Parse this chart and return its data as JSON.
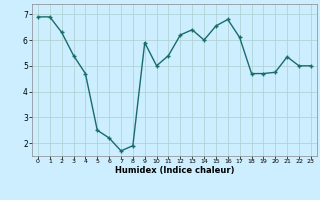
{
  "x": [
    0,
    1,
    2,
    3,
    4,
    5,
    6,
    7,
    8,
    9,
    10,
    11,
    12,
    13,
    14,
    15,
    16,
    17,
    18,
    19,
    20,
    21,
    22,
    23
  ],
  "y": [
    6.9,
    6.9,
    6.3,
    5.4,
    4.7,
    2.5,
    2.2,
    1.7,
    1.9,
    5.9,
    5.0,
    5.4,
    6.2,
    6.4,
    6.0,
    6.55,
    6.8,
    6.1,
    4.7,
    4.7,
    4.75,
    5.35,
    5.0,
    5.0
  ],
  "line_color": "#1a6b6b",
  "marker": "+",
  "marker_size": 3.5,
  "linewidth": 1.0,
  "xlabel": "Humidex (Indice chaleur)",
  "xlim": [
    -0.5,
    23.5
  ],
  "ylim": [
    1.5,
    7.4
  ],
  "yticks": [
    2,
    3,
    4,
    5,
    6,
    7
  ],
  "xticks": [
    0,
    1,
    2,
    3,
    4,
    5,
    6,
    7,
    8,
    9,
    10,
    11,
    12,
    13,
    14,
    15,
    16,
    17,
    18,
    19,
    20,
    21,
    22,
    23
  ],
  "bg_color": "#cceeff",
  "grid_color": "#b0d4d4",
  "xlabel_fontsize": 6.0,
  "tick_fontsize_x": 4.5,
  "tick_fontsize_y": 5.5
}
